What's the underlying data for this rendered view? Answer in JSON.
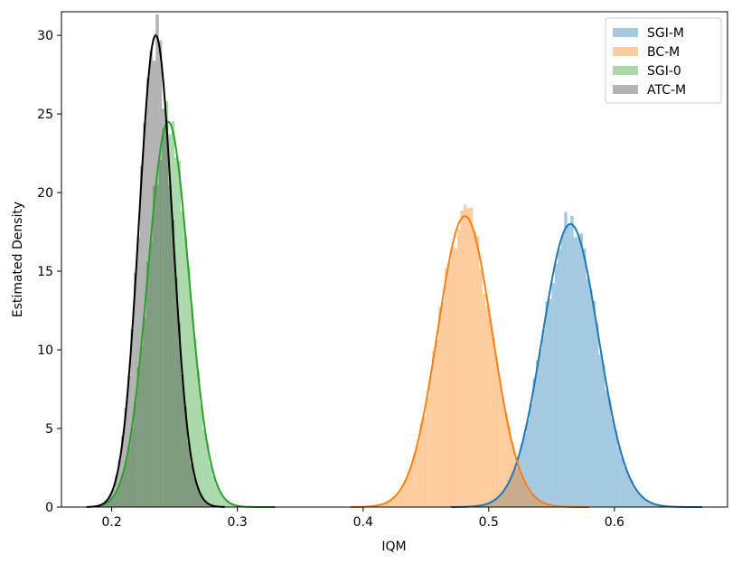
{
  "chart_data": {
    "type": "histogram",
    "xlabel": "IQM",
    "ylabel": "Estimated Density",
    "xlim": [
      0.16,
      0.69
    ],
    "ylim": [
      0,
      31.5
    ],
    "x_ticks": [
      0.2,
      0.3,
      0.4,
      0.5,
      0.6
    ],
    "x_tick_labels": [
      "0.2",
      "0.3",
      "0.4",
      "0.5",
      "0.6"
    ],
    "y_ticks": [
      0,
      5,
      10,
      15,
      20,
      25,
      30
    ],
    "y_tick_labels": [
      "0",
      "5",
      "10",
      "15",
      "20",
      "25",
      "30"
    ],
    "grid": false,
    "legend_position": "top-right",
    "series": [
      {
        "name": "SGI-M",
        "color": "#1f77b4",
        "mean": 0.565,
        "std": 0.0222,
        "peak_density": 18.0,
        "x_range": [
          0.47,
          0.67
        ]
      },
      {
        "name": "BC-M",
        "color": "#ff7f0e",
        "mean": 0.481,
        "std": 0.0216,
        "peak_density": 18.5,
        "x_range": [
          0.39,
          0.58
        ]
      },
      {
        "name": "SGI-0",
        "color": "#2ca02c",
        "mean": 0.245,
        "std": 0.0163,
        "peak_density": 24.5,
        "x_range": [
          0.19,
          0.33
        ]
      },
      {
        "name": "ATC-M",
        "color": "#404040",
        "line_color": "#000000",
        "mean": 0.235,
        "std": 0.0133,
        "peak_density": 30.0,
        "x_range": [
          0.18,
          0.29
        ]
      }
    ]
  }
}
